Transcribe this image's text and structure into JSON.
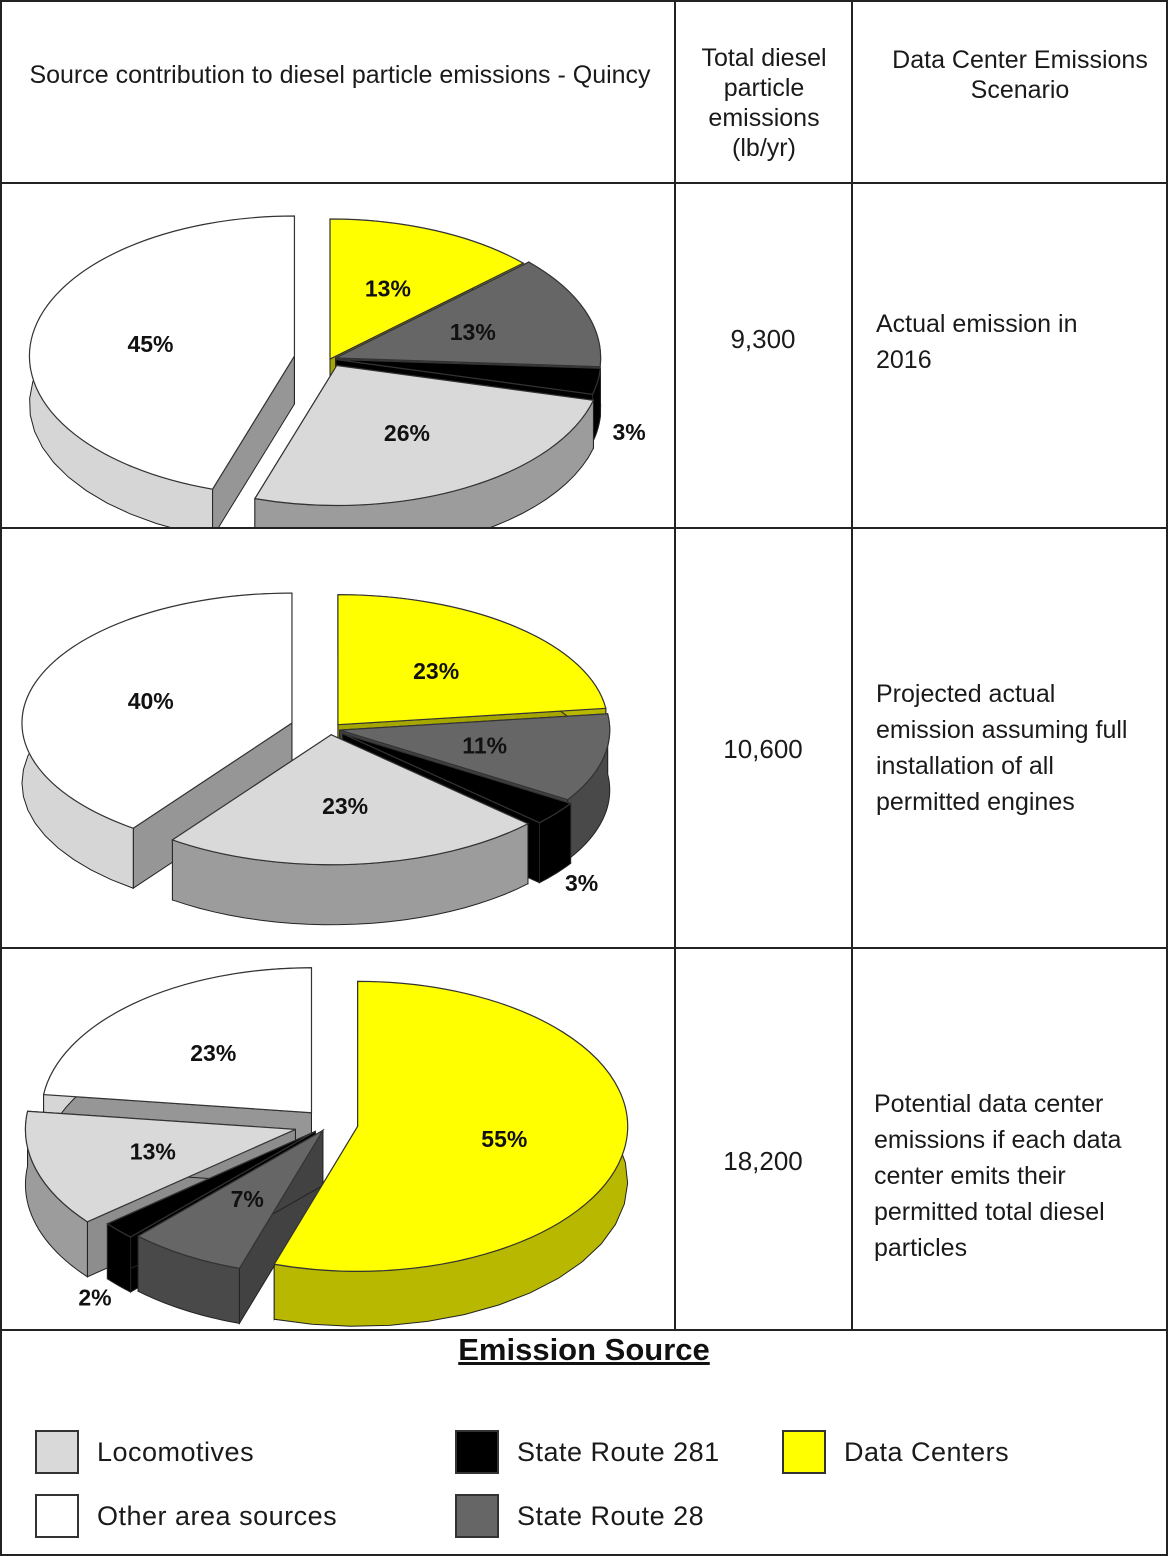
{
  "header": {
    "col1": "Source contribution to diesel particle emissions - Quincy",
    "col2": "Total diesel particle emissions (lb/yr)",
    "col3": "Data Center Emissions Scenario"
  },
  "colors": {
    "Locomotives": "#d9d9d9",
    "Other area sources": "#ffffff",
    "State Route 281": "#000000",
    "State Route 28": "#666666",
    "Data Centers": "#ffff00"
  },
  "rows": [
    {
      "total": "9,300",
      "scenario": "Actual emission in 2016"
    },
    {
      "total": "10,600",
      "scenario": "Projected actual emission assuming full installation of all permitted engines"
    },
    {
      "total": "18,200",
      "scenario": "Potential data center emissions if each data center emits their permitted total diesel particles"
    }
  ],
  "chart_data": [
    {
      "type": "pie",
      "categories": [
        "Data Centers",
        "State Route 28",
        "State Route 281",
        "Locomotives",
        "Other area sources"
      ],
      "values": [
        13,
        13,
        3,
        26,
        45
      ],
      "labels": [
        "13%",
        "13%",
        "3%",
        "26%",
        "45%"
      ]
    },
    {
      "type": "pie",
      "categories": [
        "Data Centers",
        "State Route 28",
        "State Route 281",
        "Locomotives",
        "Other area sources"
      ],
      "values": [
        23,
        11,
        3,
        23,
        40
      ],
      "labels": [
        "23%",
        "11%",
        "3%",
        "23%",
        "40%"
      ]
    },
    {
      "type": "pie",
      "categories": [
        "Data Centers",
        "State Route 28",
        "State Route 281",
        "Locomotives",
        "Other area sources"
      ],
      "values": [
        55,
        7,
        2,
        13,
        23
      ],
      "labels": [
        "55%",
        "7%",
        "2%",
        "13%",
        "23%"
      ]
    }
  ],
  "legend": {
    "title": "Emission Source",
    "items": [
      {
        "label": "Locomotives",
        "color": "#d9d9d9"
      },
      {
        "label": "State Route 281",
        "color": "#000000"
      },
      {
        "label": "Data Centers",
        "color": "#ffff00"
      },
      {
        "label": "Other area sources",
        "color": "#ffffff"
      },
      {
        "label": "State Route 28",
        "color": "#666666"
      }
    ]
  }
}
